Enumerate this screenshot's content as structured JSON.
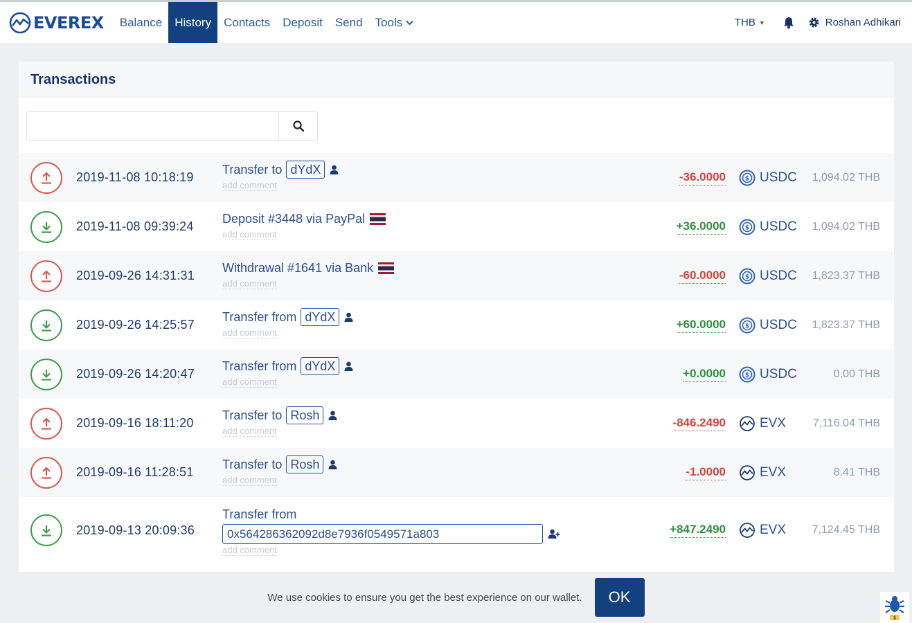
{
  "nav": {
    "brand": "EVEREX",
    "items": [
      {
        "label": "Balance"
      },
      {
        "label": "History"
      },
      {
        "label": "Contacts"
      },
      {
        "label": "Deposit"
      },
      {
        "label": "Send"
      },
      {
        "label": "Tools"
      }
    ],
    "active": "History",
    "currency": "THB",
    "user_name": "Roshan Adhikari"
  },
  "panel": {
    "title": "Transactions",
    "search_placeholder": ""
  },
  "transactions": [
    {
      "direction": "out",
      "date": "2019-11-08 10:18:19",
      "desc_prefix": "Transfer to",
      "tag": "dYdX",
      "desc_icon": "person-icon",
      "comment": "add comment",
      "amount": "-36.0000",
      "coin": "USDC",
      "fiat": "1,094.02 THB"
    },
    {
      "direction": "in",
      "date": "2019-11-08 09:39:24",
      "desc_prefix": "Deposit #3448 via PayPal",
      "desc_icon": "thailand-flag-icon",
      "comment": "add comment",
      "amount": "+36.0000",
      "coin": "USDC",
      "fiat": "1,094.02 THB"
    },
    {
      "direction": "out",
      "date": "2019-09-26 14:31:31",
      "desc_prefix": "Withdrawal #1641 via Bank",
      "desc_icon": "thailand-flag-icon",
      "comment": "add comment",
      "amount": "-60.0000",
      "coin": "USDC",
      "fiat": "1,823.37 THB"
    },
    {
      "direction": "in",
      "date": "2019-09-26 14:25:57",
      "desc_prefix": "Transfer from",
      "tag": "dYdX",
      "desc_icon": "person-icon",
      "comment": "add comment",
      "amount": "+60.0000",
      "coin": "USDC",
      "fiat": "1,823.37 THB"
    },
    {
      "direction": "in",
      "date": "2019-09-26 14:20:47",
      "desc_prefix": "Transfer from",
      "tag": "dYdX",
      "desc_icon": "person-icon",
      "comment": "add comment",
      "amount": "+0.0000",
      "coin": "USDC",
      "fiat": "0.00 THB"
    },
    {
      "direction": "out",
      "date": "2019-09-16 18:11:20",
      "desc_prefix": "Transfer to",
      "tag": "Rosh",
      "desc_icon": "person-icon",
      "comment": "add comment",
      "amount": "-846.2490",
      "coin": "EVX",
      "fiat": "7,116.04 THB"
    },
    {
      "direction": "out",
      "date": "2019-09-16 11:28:51",
      "desc_prefix": "Transfer to",
      "tag": "Rosh",
      "desc_icon": "person-icon",
      "comment": "add comment",
      "amount": "-1.0000",
      "coin": "EVX",
      "fiat": "8.41 THB"
    },
    {
      "direction": "in",
      "date": "2019-09-13 20:09:36",
      "desc_prefix": "Transfer from",
      "address": "0x564286362092d8e7936f0549571a803",
      "desc_icon": "add-contact-icon",
      "comment": "add comment",
      "amount": "+847.2490",
      "coin": "EVX",
      "fiat": "7,124.45 THB"
    }
  ],
  "cookie": {
    "text": "We use cookies to ensure you get the best experience on our wallet.",
    "ok_label": "OK"
  },
  "bug_badge": "1",
  "colors": {
    "brand": "#13417f",
    "negative": "#d1443a",
    "positive": "#2f8f3d"
  }
}
